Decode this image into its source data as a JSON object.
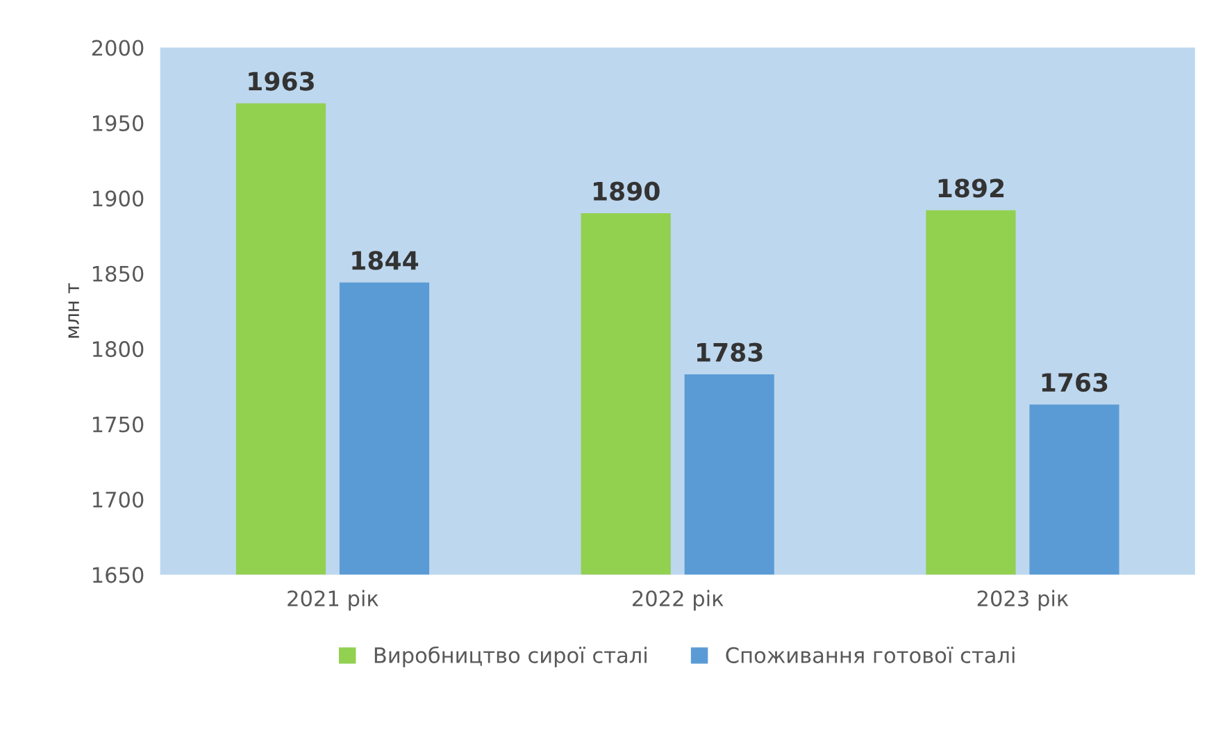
{
  "chart_data": {
    "type": "bar",
    "ylabel": "млн т",
    "categories": [
      "2021 рік",
      "2022 рік",
      "2023 рік"
    ],
    "series": [
      {
        "name": "Виробництво сирої сталі",
        "color": "#92d050",
        "values": [
          1963,
          1890,
          1892
        ]
      },
      {
        "name": "Споживання готової сталі",
        "color": "#5b9bd5",
        "values": [
          1844,
          1783,
          1763
        ]
      }
    ],
    "ylim": [
      1650,
      2000
    ],
    "yticks": [
      1650,
      1700,
      1750,
      1800,
      1850,
      1900,
      1950,
      2000
    ],
    "data_labels": true,
    "grid": false,
    "legend": "bottom"
  }
}
